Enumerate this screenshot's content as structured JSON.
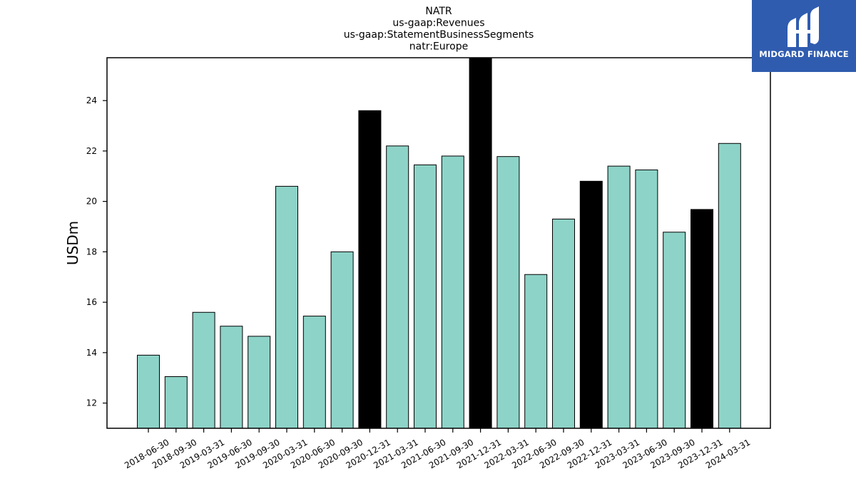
{
  "logo": {
    "text": "MIDGARD FINANCE",
    "icon": "midgard-m-mark",
    "color": "#2f5caf"
  },
  "chart_data": {
    "type": "bar",
    "title_lines": [
      "NATR",
      "us-gaap:Revenues",
      "us-gaap:StatementBusinessSegments",
      "natr:Europe"
    ],
    "xlabel": "",
    "ylabel": "USDm",
    "ylim": [
      11,
      25.7
    ],
    "yticks": [
      12,
      14,
      16,
      18,
      20,
      22,
      24
    ],
    "grid": false,
    "legend": "none",
    "categories": [
      "2018-06-30",
      "2018-09-30",
      "2019-03-31",
      "2019-06-30",
      "2019-09-30",
      "2020-03-31",
      "2020-06-30",
      "2020-09-30",
      "2020-12-31",
      "2021-03-31",
      "2021-06-30",
      "2021-09-30",
      "2021-12-31",
      "2022-03-31",
      "2022-06-30",
      "2022-09-30",
      "2022-12-31",
      "2023-03-31",
      "2023-06-30",
      "2023-09-30",
      "2023-12-31",
      "2024-03-31"
    ],
    "values": [
      13.9,
      13.05,
      15.6,
      15.05,
      14.65,
      20.6,
      15.45,
      18.0,
      23.6,
      22.2,
      21.45,
      21.8,
      26.3,
      21.78,
      17.1,
      19.3,
      20.8,
      21.4,
      21.25,
      18.78,
      19.68,
      22.3
    ],
    "highlight": [
      false,
      false,
      false,
      false,
      false,
      false,
      false,
      false,
      true,
      false,
      false,
      false,
      true,
      false,
      false,
      false,
      true,
      false,
      false,
      false,
      true,
      false
    ],
    "colors": {
      "bar": "#8dd3c7",
      "highlight": "#000000",
      "edge": "#000000"
    }
  }
}
